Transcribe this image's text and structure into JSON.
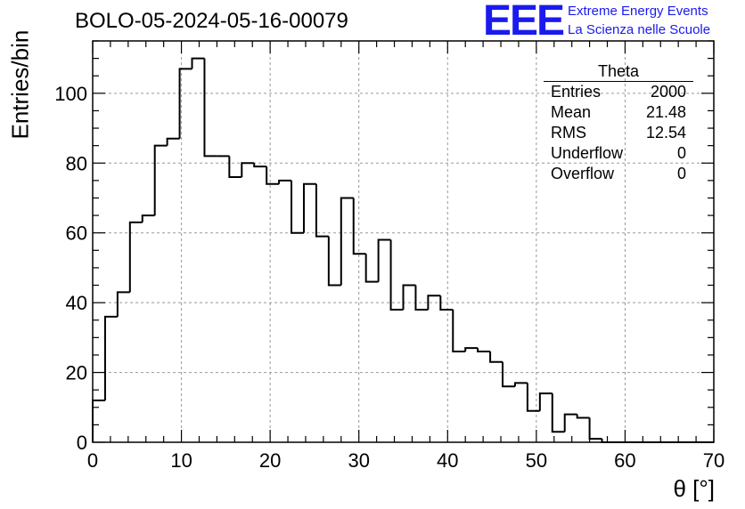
{
  "chart_data": {
    "type": "histogram",
    "title": "BOLO-05-2024-05-16-00079",
    "xlabel": "θ [°]",
    "ylabel": "Entries/bin",
    "xlim": [
      0,
      70
    ],
    "ylim": [
      0,
      115
    ],
    "grid": true,
    "bin_width": 1.4,
    "x_ticks": [
      0,
      10,
      20,
      30,
      40,
      50,
      60,
      70
    ],
    "y_ticks": [
      0,
      20,
      40,
      60,
      80,
      100
    ],
    "x_tick_labels": [
      "0",
      "10",
      "20",
      "30",
      "40",
      "50",
      "60",
      "70"
    ],
    "y_tick_labels": [
      "0",
      "20",
      "40",
      "60",
      "80",
      "100"
    ],
    "bin_edges": [
      0,
      1.4,
      2.8,
      4.2,
      5.6,
      7.0,
      8.4,
      9.8,
      11.2,
      12.6,
      14.0,
      15.4,
      16.8,
      18.2,
      19.6,
      21.0,
      22.4,
      23.8,
      25.2,
      26.6,
      28.0,
      29.4,
      30.8,
      32.2,
      33.6,
      35.0,
      36.4,
      37.8,
      39.2,
      40.6,
      42.0,
      43.4,
      44.8,
      46.2,
      47.6,
      49.0,
      50.4,
      51.8,
      53.2,
      54.6,
      56.0,
      57.4,
      58.8,
      60.2,
      61.6,
      63.0,
      64.4,
      65.8,
      67.2,
      68.6,
      70.0
    ],
    "counts": [
      12,
      36,
      43,
      63,
      65,
      85,
      87,
      107,
      110,
      82,
      82,
      76,
      80,
      79,
      74,
      75,
      60,
      74,
      59,
      45,
      70,
      54,
      46,
      58,
      38,
      45,
      38,
      42,
      38,
      26,
      27,
      26,
      23,
      16,
      17,
      9,
      14,
      3,
      8,
      7,
      1,
      0,
      0,
      0,
      0,
      0,
      0,
      0,
      0,
      0
    ]
  },
  "stats_box": {
    "name": "Theta",
    "entries_label": "Entries",
    "entries": "2000",
    "mean_label": "Mean",
    "mean": "21.48",
    "rms_label": "RMS",
    "rms": "12.54",
    "underflow_label": "Underflow",
    "underflow": "0",
    "overflow_label": "Overflow",
    "overflow": "0"
  },
  "logo": {
    "mark": "EEE",
    "line1": "Extreme Energy Events",
    "line2": "La Scienza nelle Scuole",
    "color": "#1a1aee"
  },
  "colors": {
    "line": "#000000",
    "grid": "#999999",
    "frame": "#000000"
  }
}
